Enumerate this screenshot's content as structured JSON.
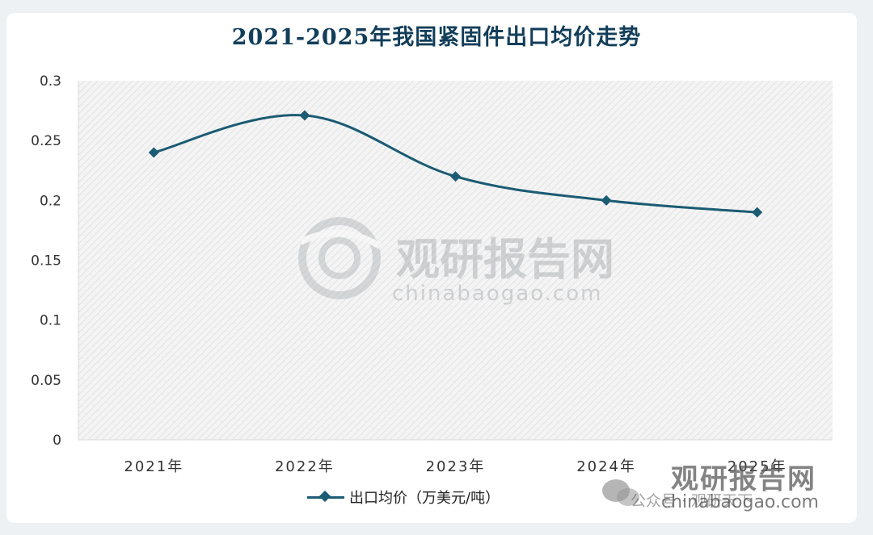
{
  "chart_data": {
    "type": "line",
    "title": "2021-2025年我国紧固件出口均价走势",
    "categories": [
      "2021年",
      "2022年",
      "2023年",
      "2024年",
      "2025年"
    ],
    "series": [
      {
        "name": "出口均价（万美元/吨）",
        "values": [
          0.24,
          0.271,
          0.22,
          0.2,
          0.19
        ],
        "color": "#1b5b73"
      }
    ],
    "y_ticks": [
      "0",
      "0.05",
      "0.1",
      "0.15",
      "0.2",
      "0.25",
      "0.3"
    ],
    "ylim": [
      0,
      0.3
    ],
    "grid": false,
    "legend_position": "bottom",
    "plot_background": "hatched light gray",
    "smooth": true
  },
  "watermark": {
    "center_brand": "观研报告网",
    "center_domain": "chinabaogao.com",
    "footer_brand": "观研报告网",
    "footer_account": "公众号 · 观研天下",
    "footer_domain": "chinabaogao.com"
  }
}
